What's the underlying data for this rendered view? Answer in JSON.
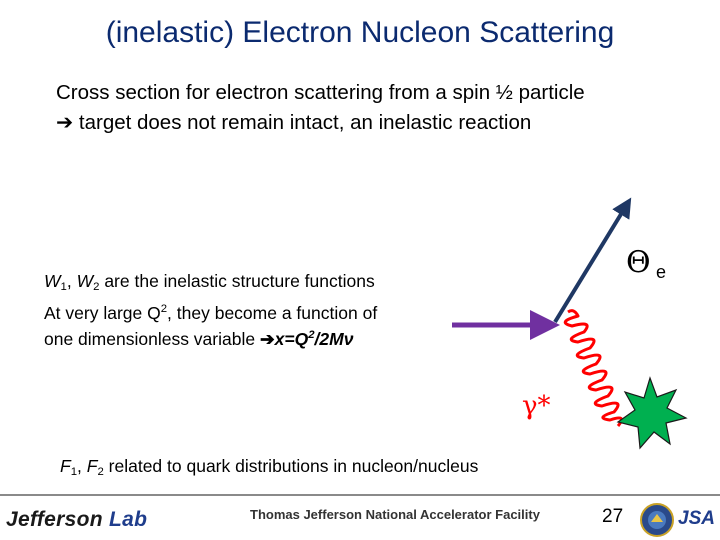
{
  "slide": {
    "title": "(inelastic) Electron Nucleon Scattering",
    "intro_line1": "Cross section for electron scattering from a spin ½ particle",
    "intro_line2": "target does not remain intact, an inelastic reaction",
    "w_text": {
      "w1": "W",
      "w1_sub": "1",
      "sep": ", ",
      "w2": "W",
      "w2_sub": "2",
      "rest": " are the inelastic structure functions",
      "line2_pre": "At very large Q",
      "line2_sup": "2",
      "line2_post": ", they become a function of",
      "line3_pre": "one dimensionless variable ",
      "formula_pre": "x=Q",
      "formula_sup": "2",
      "formula_post": "/2Mν"
    },
    "f_text": {
      "f1": "F",
      "f1_sub": "1",
      "sep": ", ",
      "f2": "F",
      "f2_sub": "2",
      "rest": " related to quark distributions in nucleon/nucleus"
    },
    "theta_symbol": "Θ",
    "theta_sub": "e",
    "photon_label": "γ*"
  },
  "footer": {
    "lab_name": "Jefferson",
    "lab_suffix": "Lab",
    "facility": "Thomas Jefferson National Accelerator Facility",
    "page_number": "27",
    "partner_logo": "JSA"
  },
  "colors": {
    "title": "#0b2a6f",
    "incoming_beam": "#7030a0",
    "outgoing_electron": "#1f3864",
    "virtual_photon": "#ff0000",
    "nucleon_star": "#00b050"
  },
  "icons": {
    "arrow": "right-arrow-icon",
    "seal": "doe-seal-icon"
  }
}
